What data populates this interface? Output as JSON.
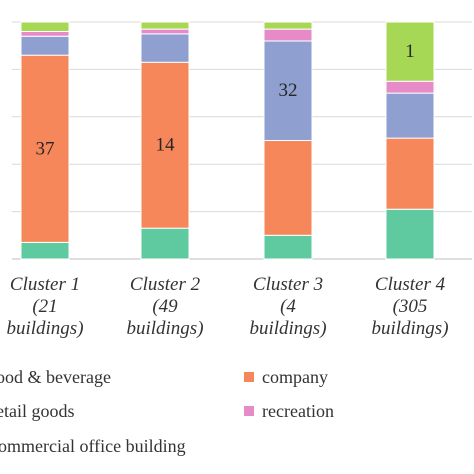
{
  "chart_data": {
    "type": "bar",
    "stacked": true,
    "normalized": true,
    "categories": [
      "Cluster 1 (21 buildings)",
      "Cluster 2 (49 buildings)",
      "Cluster 3 (4 buildings)",
      "Cluster 4 (305 buildings)"
    ],
    "category_lines": [
      [
        "Cluster 1",
        "(21",
        "buildings)"
      ],
      [
        "Cluster 2",
        "(49",
        "buildings)"
      ],
      [
        "Cluster 3",
        "(4",
        "buildings)"
      ],
      [
        "Cluster 4",
        "(305",
        "buildings)"
      ]
    ],
    "series": [
      {
        "name": "commercial office building",
        "color": "#5fc9a0",
        "values": [
          0.07,
          0.13,
          0.1,
          0.21
        ]
      },
      {
        "name": "company",
        "color": "#f5875a",
        "values": [
          0.79,
          0.7,
          0.4,
          0.3
        ]
      },
      {
        "name": "retail goods",
        "color": "#8e9fd0",
        "values": [
          0.08,
          0.12,
          0.42,
          0.19
        ]
      },
      {
        "name": "recreation",
        "color": "#e78ac8",
        "values": [
          0.02,
          0.02,
          0.05,
          0.05
        ]
      },
      {
        "name": "food & beverage",
        "color": "#a7d855",
        "values": [
          0.04,
          0.03,
          0.03,
          0.25
        ]
      }
    ],
    "data_labels": [
      {
        "category": 0,
        "series": 1,
        "text": "37"
      },
      {
        "category": 1,
        "series": 1,
        "text": "14"
      },
      {
        "category": 2,
        "series": 2,
        "text": "32"
      },
      {
        "category": 3,
        "series": 4,
        "text": "1"
      }
    ],
    "ylim": [
      0,
      1
    ],
    "yticks": [
      0.2,
      0.4,
      0.6,
      0.8,
      1.0
    ],
    "grid": true,
    "legend": [
      {
        "label": "food & beverage",
        "color": "#a7d855"
      },
      {
        "label": "company",
        "color": "#f5875a"
      },
      {
        "label": "retail goods",
        "color": "#8e9fd0"
      },
      {
        "label": "recreation",
        "color": "#e78ac8"
      },
      {
        "label": "commercial office building",
        "color": "#5fc9a0"
      }
    ],
    "legend_placement": "bottom"
  }
}
